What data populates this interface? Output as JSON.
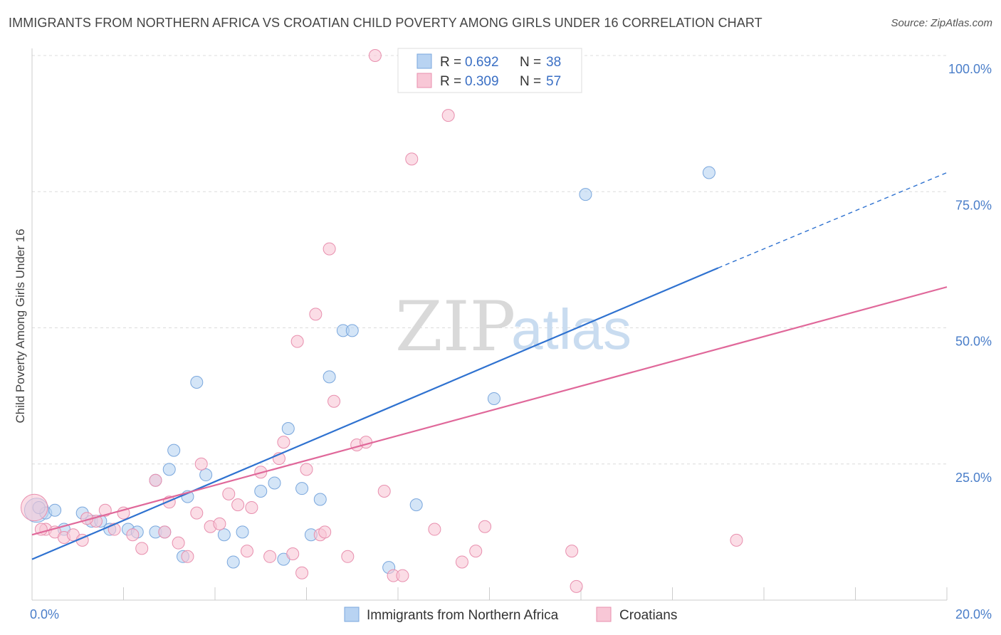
{
  "header": {
    "title": "IMMIGRANTS FROM NORTHERN AFRICA VS CROATIAN CHILD POVERTY AMONG GIRLS UNDER 16 CORRELATION CHART",
    "source": "Source: ZipAtlas.com"
  },
  "watermark": {
    "zip": "ZIP",
    "atlas": "atlas"
  },
  "legend": {
    "r_label": "R =",
    "n_label": "N =",
    "entries": [
      {
        "r": "0.692",
        "n": "38"
      },
      {
        "r": "0.309",
        "n": "57"
      }
    ]
  },
  "colors": {
    "blue_fill": "#b8d3f2",
    "blue_stroke": "#7aa7dd",
    "blue_line": "#2f72d0",
    "pink_fill": "#f8c7d6",
    "pink_stroke": "#e88fae",
    "pink_line": "#e0689a"
  },
  "chart_data": {
    "type": "scatter",
    "xlabel": "",
    "ylabel": "Child Poverty Among Girls Under 16",
    "xlim": [
      0,
      20
    ],
    "ylim": [
      0,
      100
    ],
    "x_tick_labels": [
      "0.0%",
      "20.0%"
    ],
    "y_tick_labels": [
      "25.0%",
      "50.0%",
      "75.0%",
      "100.0%"
    ],
    "y_ticks": [
      25,
      50,
      75,
      100
    ],
    "series": [
      {
        "name": "Immigrants from Northern Africa",
        "color": "#b8d3f2",
        "trend": {
          "x": [
            0,
            15
          ],
          "y": [
            7.5,
            61
          ],
          "dashed_to": {
            "x": 20,
            "y": 78.5
          }
        },
        "points": [
          [
            0.1,
            16.5,
            20
          ],
          [
            0.3,
            16,
            10
          ],
          [
            0.5,
            16.5,
            10
          ],
          [
            0.7,
            13,
            10
          ],
          [
            1.1,
            16,
            10
          ],
          [
            1.3,
            14.5,
            10
          ],
          [
            1.5,
            14.5,
            10
          ],
          [
            1.7,
            13,
            10
          ],
          [
            2.1,
            13,
            10
          ],
          [
            2.3,
            12.5,
            10
          ],
          [
            2.7,
            22,
            10
          ],
          [
            2.7,
            12.5,
            10
          ],
          [
            2.9,
            12.5,
            10
          ],
          [
            3.0,
            24,
            10
          ],
          [
            3.1,
            27.5,
            10
          ],
          [
            3.3,
            8,
            10
          ],
          [
            3.4,
            19,
            10
          ],
          [
            3.6,
            40,
            10
          ],
          [
            3.8,
            23,
            10
          ],
          [
            4.2,
            12,
            10
          ],
          [
            4.4,
            7,
            10
          ],
          [
            4.6,
            12.5,
            10
          ],
          [
            5.0,
            20,
            10
          ],
          [
            5.3,
            21.5,
            10
          ],
          [
            5.5,
            7.5,
            10
          ],
          [
            5.6,
            31.5,
            10
          ],
          [
            5.9,
            20.5,
            10
          ],
          [
            6.1,
            12,
            10
          ],
          [
            6.3,
            18.5,
            10
          ],
          [
            6.5,
            41,
            10
          ],
          [
            6.8,
            49.5,
            10
          ],
          [
            7.0,
            49.5,
            10
          ],
          [
            7.8,
            6,
            10
          ],
          [
            8.4,
            17.5,
            10
          ],
          [
            10.1,
            37,
            10
          ],
          [
            12.1,
            74.5,
            10
          ],
          [
            14.8,
            78.5,
            10
          ],
          [
            0.15,
            17,
            10
          ]
        ]
      },
      {
        "name": "Croatians",
        "color": "#f8c7d6",
        "trend": {
          "x": [
            0,
            20
          ],
          "y": [
            12,
            57.5
          ]
        },
        "points": [
          [
            0.05,
            17,
            22
          ],
          [
            0.3,
            13,
            10
          ],
          [
            0.5,
            12.5,
            10
          ],
          [
            0.7,
            11.5,
            10
          ],
          [
            0.9,
            12,
            10
          ],
          [
            1.1,
            11,
            10
          ],
          [
            1.4,
            14.5,
            10
          ],
          [
            1.6,
            16.5,
            10
          ],
          [
            1.8,
            13,
            10
          ],
          [
            2.0,
            16,
            10
          ],
          [
            2.2,
            12,
            10
          ],
          [
            2.4,
            9.5,
            10
          ],
          [
            2.7,
            22,
            10
          ],
          [
            2.9,
            12.5,
            10
          ],
          [
            3.0,
            18,
            10
          ],
          [
            3.2,
            10.5,
            10
          ],
          [
            3.4,
            8,
            10
          ],
          [
            3.6,
            16,
            10
          ],
          [
            3.7,
            25,
            10
          ],
          [
            3.9,
            13.5,
            10
          ],
          [
            4.1,
            14,
            10
          ],
          [
            4.3,
            19.5,
            10
          ],
          [
            4.5,
            17.5,
            10
          ],
          [
            4.7,
            9,
            10
          ],
          [
            4.8,
            17,
            10
          ],
          [
            5.0,
            23.5,
            10
          ],
          [
            5.2,
            8,
            10
          ],
          [
            5.4,
            26,
            10
          ],
          [
            5.5,
            29,
            10
          ],
          [
            5.7,
            8.5,
            10
          ],
          [
            5.8,
            47.5,
            10
          ],
          [
            5.9,
            5,
            10
          ],
          [
            6.0,
            24,
            10
          ],
          [
            6.2,
            52.5,
            10
          ],
          [
            6.3,
            12,
            10
          ],
          [
            6.4,
            12.5,
            10
          ],
          [
            6.5,
            64.5,
            10
          ],
          [
            6.6,
            36.5,
            10
          ],
          [
            6.9,
            8,
            10
          ],
          [
            7.1,
            28.5,
            10
          ],
          [
            7.3,
            29,
            10
          ],
          [
            7.5,
            100,
            10
          ],
          [
            7.7,
            20,
            10
          ],
          [
            7.9,
            4.5,
            10
          ],
          [
            8.1,
            4.5,
            10
          ],
          [
            8.3,
            81,
            10
          ],
          [
            8.6,
            100,
            10
          ],
          [
            8.8,
            13,
            10
          ],
          [
            9.1,
            89,
            10
          ],
          [
            9.4,
            7,
            10
          ],
          [
            9.7,
            9,
            10
          ],
          [
            9.9,
            13.5,
            10
          ],
          [
            11.8,
            9,
            10
          ],
          [
            11.9,
            2.5,
            10
          ],
          [
            15.4,
            11,
            10
          ],
          [
            0.2,
            13,
            10
          ],
          [
            1.2,
            15,
            10
          ]
        ]
      }
    ]
  }
}
